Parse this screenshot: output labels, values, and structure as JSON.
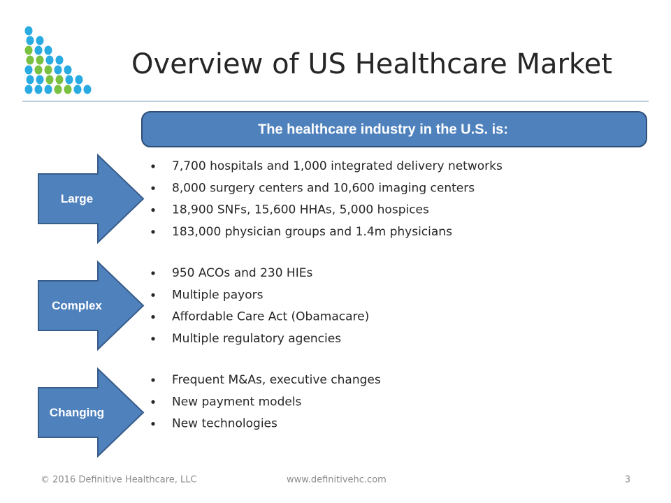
{
  "header": {
    "title": "Overview of US Healthcare Market"
  },
  "banner": "The healthcare industry in the U.S. is:",
  "groups": [
    {
      "label": "Large",
      "bullets": [
        "7,700 hospitals and 1,000 integrated delivery networks",
        "8,000 surgery centers and 10,600 imaging centers",
        "18,900 SNFs, 15,600 HHAs, 5,000 hospices",
        "183,000 physician groups and 1.4m physicians"
      ]
    },
    {
      "label": "Complex",
      "bullets": [
        "950 ACOs and 230 HIEs",
        "Multiple payors",
        "Affordable Care Act (Obamacare)",
        "Multiple regulatory agencies"
      ]
    },
    {
      "label": "Changing",
      "bullets": [
        "Frequent M&As, executive changes",
        "New payment models",
        "New technologies"
      ]
    }
  ],
  "footer": {
    "copyright": "© 2016 Definitive Healthcare, LLC",
    "url": "www.definitivehc.com",
    "page": "3"
  }
}
